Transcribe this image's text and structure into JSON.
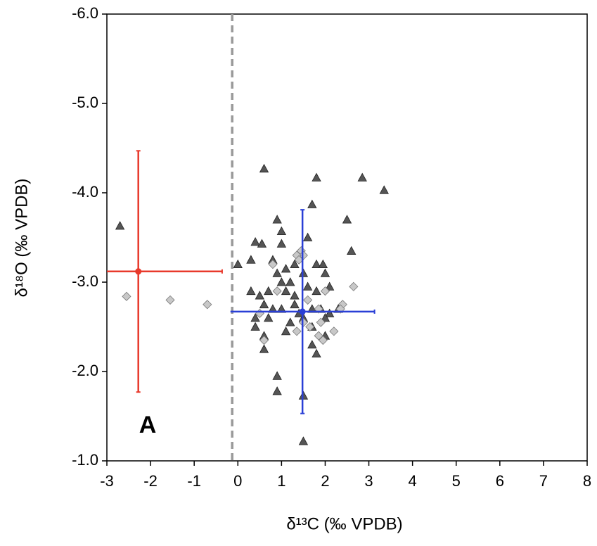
{
  "chart_data": {
    "type": "scatter",
    "x_label": "δ¹³C (‰ VPDB)",
    "y_label": "δ¹⁸O (‰ VPDB)",
    "xlim": [
      -3,
      8
    ],
    "ylim": [
      -1.0,
      -6.0
    ],
    "xticks": [
      -3,
      -2,
      -1,
      0,
      1,
      2,
      3,
      4,
      5,
      6,
      7,
      8
    ],
    "yticks": [
      {
        "value": -1.0,
        "label": "-1.0"
      },
      {
        "value": -2.0,
        "label": "-2.0"
      },
      {
        "value": -3.0,
        "label": "-3.0"
      },
      {
        "value": -4.0,
        "label": "-4.0"
      },
      {
        "value": -5.0,
        "label": "-5.0"
      },
      {
        "value": -6.0,
        "label": "-6.0"
      }
    ],
    "vline": {
      "x": -0.13,
      "color": "#999999"
    },
    "annotations": [
      "A"
    ],
    "series": [
      {
        "marker": "triangle",
        "color": "#555555",
        "x": [
          -2.7,
          0.6,
          1.8,
          2.85,
          3.35,
          1.7,
          2.5,
          0.9,
          1.0,
          0.4,
          0.55,
          1.0,
          1.6,
          2.6,
          0.0,
          0.3,
          0.8,
          0.9,
          1.1,
          1.3,
          1.5,
          1.8,
          1.95,
          2.0,
          1.2,
          1.0,
          0.3,
          0.5,
          0.7,
          1.1,
          1.3,
          1.6,
          1.8,
          2.1,
          0.6,
          0.8,
          1.0,
          1.3,
          1.7,
          1.9,
          2.1,
          2.3,
          0.4,
          0.7,
          1.2,
          1.5,
          1.7,
          2.0,
          0.4,
          0.6,
          1.1,
          1.7,
          2.0,
          0.6,
          1.8,
          0.9,
          0.9,
          1.5,
          1.5,
          1.4
        ],
        "values": [
          -3.63,
          -4.27,
          -4.17,
          -4.17,
          -4.03,
          -3.87,
          -3.7,
          -3.7,
          -3.57,
          -3.45,
          -3.43,
          -3.43,
          -3.5,
          -3.35,
          -3.2,
          -3.25,
          -3.25,
          -3.1,
          -3.15,
          -3.2,
          -3.1,
          -3.2,
          -3.2,
          -3.1,
          -3.0,
          -3.0,
          -2.9,
          -2.85,
          -2.9,
          -2.9,
          -2.85,
          -2.95,
          -2.9,
          -2.95,
          -2.75,
          -2.7,
          -2.7,
          -2.75,
          -2.7,
          -2.7,
          -2.65,
          -2.7,
          -2.6,
          -2.6,
          -2.55,
          -2.6,
          -2.5,
          -2.6,
          -2.5,
          -2.4,
          -2.45,
          -2.3,
          -2.4,
          -2.25,
          -2.2,
          -1.95,
          -1.78,
          -1.73,
          -1.22,
          -2.65
        ]
      },
      {
        "marker": "diamond",
        "color": "#c8c8c8",
        "x": [
          -2.55,
          -1.55,
          -0.7,
          0.8,
          1.45,
          1.5,
          1.35,
          1.4,
          0.9,
          2.0,
          2.65,
          1.6,
          1.85,
          2.4,
          2.35,
          0.5,
          1.5,
          1.65,
          1.9,
          0.6,
          1.85,
          2.2,
          1.95,
          1.35
        ],
        "values": [
          -2.84,
          -2.8,
          -2.75,
          -3.2,
          -3.35,
          -3.3,
          -3.3,
          -3.25,
          -2.9,
          -2.9,
          -2.95,
          -2.8,
          -2.7,
          -2.75,
          -2.7,
          -2.65,
          -2.55,
          -2.5,
          -2.55,
          -2.35,
          -2.4,
          -2.45,
          -2.35,
          -2.45
        ]
      },
      {
        "marker": "mean",
        "color": "#e8392b",
        "x": [
          -2.28
        ],
        "values": [
          -3.12
        ],
        "xerr": [
          1.92
        ],
        "yerr": [
          1.35
        ]
      },
      {
        "marker": "mean",
        "color": "#2a3fd6",
        "x": [
          1.48
        ],
        "values": [
          -2.67
        ],
        "xerr": [
          1.65
        ],
        "yerr": [
          1.14
        ]
      }
    ]
  }
}
